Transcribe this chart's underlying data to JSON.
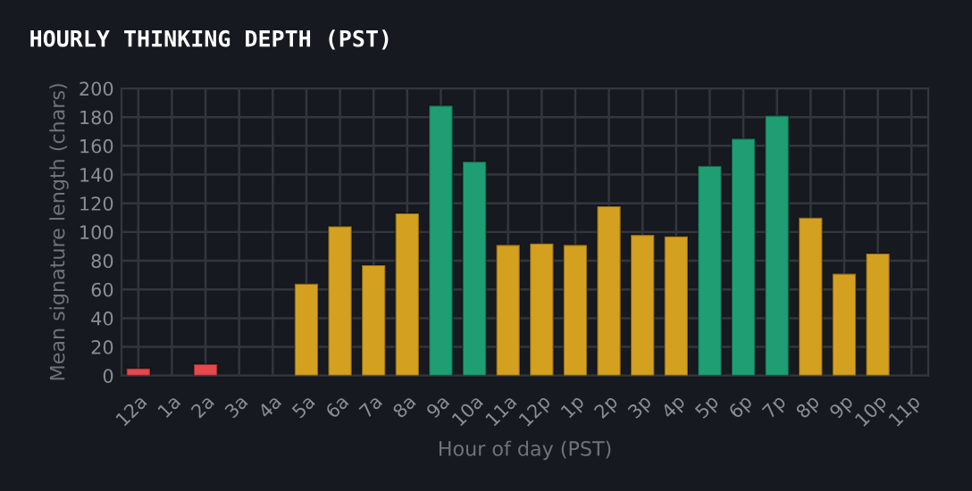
{
  "chart_data": {
    "type": "bar",
    "title": "HOURLY THINKING DEPTH (PST)",
    "xlabel": "Hour of day (PST)",
    "ylabel": "Mean signature length (chars)",
    "categories": [
      "12a",
      "1a",
      "2a",
      "3a",
      "4a",
      "5a",
      "6a",
      "7a",
      "8a",
      "9a",
      "10a",
      "11a",
      "12p",
      "1p",
      "2p",
      "3p",
      "4p",
      "5p",
      "6p",
      "7p",
      "8p",
      "9p",
      "10p",
      "11p"
    ],
    "values": [
      5,
      null,
      8,
      null,
      null,
      64,
      104,
      77,
      113,
      188,
      149,
      91,
      92,
      91,
      118,
      98,
      97,
      146,
      165,
      181,
      110,
      71,
      85,
      null
    ],
    "colors": [
      "#e5484d",
      "#e5484d",
      "#e5484d",
      "#e5484d",
      "#e5484d",
      "#d4a020",
      "#d4a020",
      "#d4a020",
      "#d4a020",
      "#1f9e74",
      "#1f9e74",
      "#d4a020",
      "#d4a020",
      "#d4a020",
      "#d4a020",
      "#d4a020",
      "#d4a020",
      "#1f9e74",
      "#1f9e74",
      "#1f9e74",
      "#d4a020",
      "#d4a020",
      "#d4a020",
      "#d4a020"
    ],
    "ylim": [
      0,
      200
    ],
    "yticks": [
      0,
      20,
      40,
      60,
      80,
      100,
      120,
      140,
      160,
      180,
      200
    ],
    "grid": true
  }
}
